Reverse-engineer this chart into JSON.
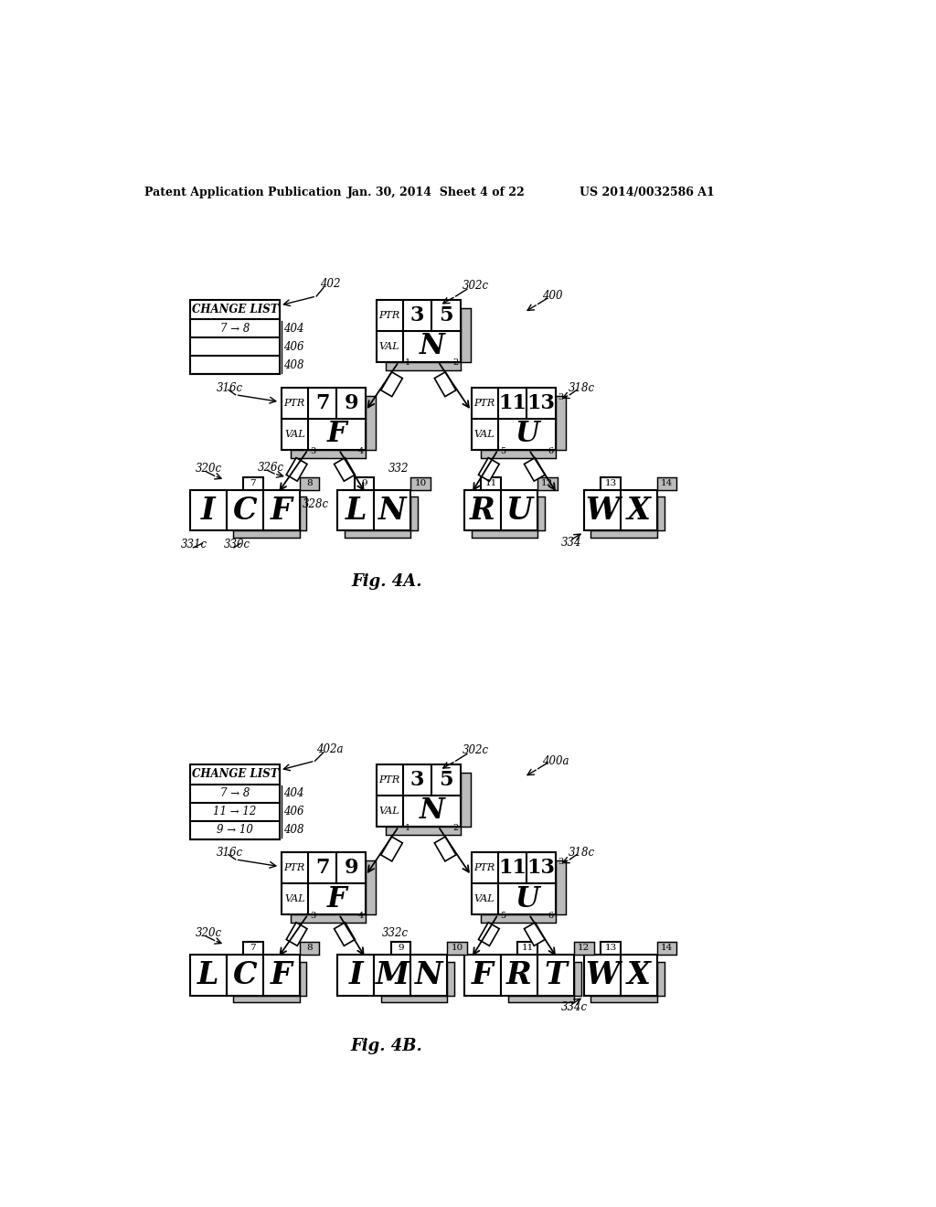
{
  "bg_color": "#ffffff",
  "header_left": "Patent Application Publication",
  "header_mid": "Jan. 30, 2014  Sheet 4 of 22",
  "header_right": "US 2014/0032586 A1",
  "fig4a_label": "Fig. 4A.",
  "fig4b_label": "Fig. 4B."
}
